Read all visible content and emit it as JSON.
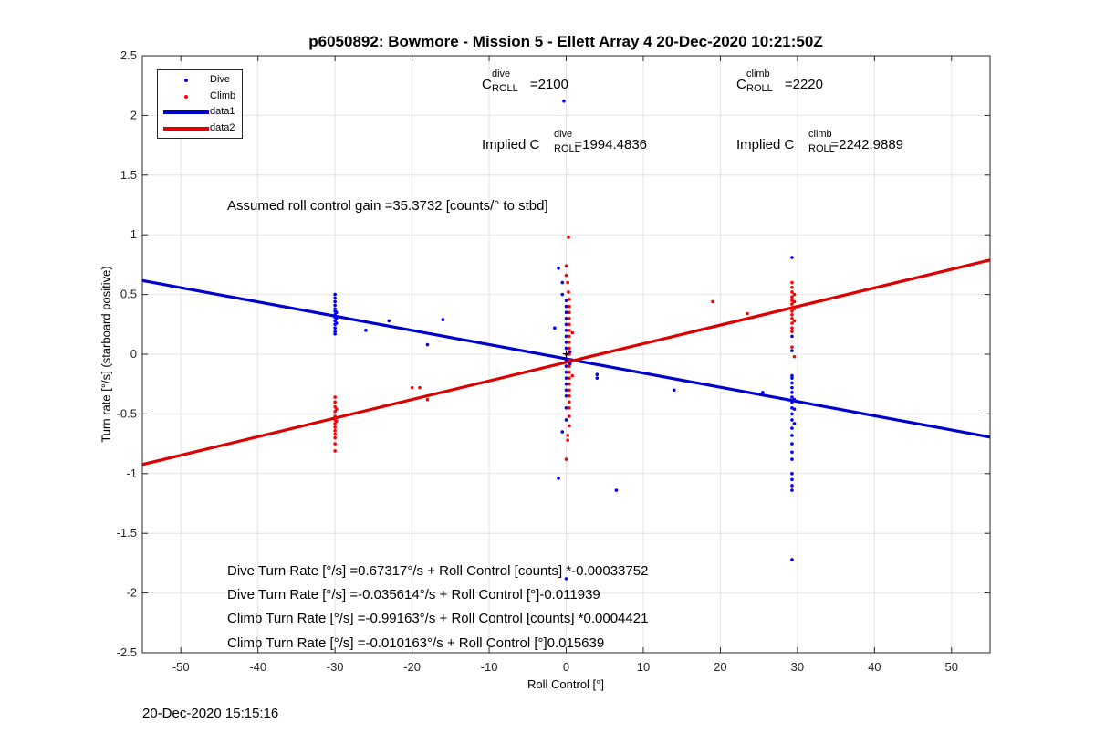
{
  "chart_data": {
    "type": "scatter",
    "title": "p6050892: Bowmore - Mission 5 - Ellett Array 4 20-Dec-2020 10:21:50Z",
    "xlabel": "Roll Control [°]",
    "ylabel": "Turn rate [°/s] (starboard positive)",
    "xlim": [
      -55,
      55
    ],
    "ylim": [
      -2.5,
      2.5
    ],
    "xticks": [
      -50,
      -40,
      -30,
      -20,
      -10,
      0,
      10,
      20,
      30,
      40,
      50
    ],
    "yticks": [
      -2.5,
      -2,
      -1.5,
      -1,
      -0.5,
      0,
      0.5,
      1,
      1.5,
      2,
      2.5
    ],
    "grid": true,
    "legend_position": "top-left",
    "series": [
      {
        "name": "Dive",
        "kind": "points",
        "color": "#0000ff",
        "points": [
          [
            -30,
            0.5
          ],
          [
            -30,
            0.47
          ],
          [
            -30,
            0.44
          ],
          [
            -30,
            0.41
          ],
          [
            -30,
            0.38
          ],
          [
            -30,
            0.36
          ],
          [
            -30,
            0.33
          ],
          [
            -30,
            0.31
          ],
          [
            -30,
            0.28
          ],
          [
            -30,
            0.25
          ],
          [
            -30,
            0.22
          ],
          [
            -30,
            0.19
          ],
          [
            -30,
            0.17
          ],
          [
            -29.8,
            0.35
          ],
          [
            -29.8,
            0.3
          ],
          [
            -29.8,
            0.26
          ],
          [
            -26,
            0.2
          ],
          [
            -23,
            0.28
          ],
          [
            -18,
            0.08
          ],
          [
            -16,
            0.29
          ],
          [
            -1,
            0.72
          ],
          [
            -0.5,
            0.6
          ],
          [
            -0.5,
            0.5
          ],
          [
            0,
            0.45
          ],
          [
            0,
            0.4
          ],
          [
            0,
            0.35
          ],
          [
            0,
            0.3
          ],
          [
            0,
            0.25
          ],
          [
            0,
            0.2
          ],
          [
            0,
            0.15
          ],
          [
            0,
            0.1
          ],
          [
            0,
            0.05
          ],
          [
            0,
            0.0
          ],
          [
            0,
            -0.05
          ],
          [
            0,
            -0.1
          ],
          [
            0,
            -0.15
          ],
          [
            0,
            -0.2
          ],
          [
            0,
            -0.25
          ],
          [
            0,
            -0.3
          ],
          [
            0,
            -0.35
          ],
          [
            0,
            -0.45
          ],
          [
            0,
            -0.55
          ],
          [
            -0.5,
            -0.65
          ],
          [
            -1,
            -1.04
          ],
          [
            -1.5,
            0.22
          ],
          [
            0.5,
            0.02
          ],
          [
            0.5,
            -0.08
          ],
          [
            -0.3,
            2.12
          ],
          [
            0,
            -1.88
          ],
          [
            4,
            -0.17
          ],
          [
            4,
            -0.2
          ],
          [
            14,
            -0.3
          ],
          [
            25.5,
            -0.32
          ],
          [
            6.5,
            -1.14
          ],
          [
            29.3,
            0.81
          ],
          [
            29.3,
            0.15
          ],
          [
            29.3,
            0.03
          ],
          [
            29.3,
            -0.18
          ],
          [
            29.3,
            -0.2
          ],
          [
            29.3,
            -0.24
          ],
          [
            29.3,
            -0.28
          ],
          [
            29.3,
            -0.32
          ],
          [
            29.3,
            -0.36
          ],
          [
            29.3,
            -0.4
          ],
          [
            29.3,
            -0.45
          ],
          [
            29.3,
            -0.5
          ],
          [
            29.3,
            -0.55
          ],
          [
            29.3,
            -0.62
          ],
          [
            29.3,
            -0.68
          ],
          [
            29.3,
            -0.75
          ],
          [
            29.3,
            -0.82
          ],
          [
            29.3,
            -0.88
          ],
          [
            29.3,
            -1.0
          ],
          [
            29.3,
            -1.05
          ],
          [
            29.3,
            -1.1
          ],
          [
            29.3,
            -1.14
          ],
          [
            29.3,
            -1.72
          ],
          [
            29.6,
            -0.38
          ],
          [
            29.6,
            -0.46
          ],
          [
            29.6,
            -0.58
          ]
        ]
      },
      {
        "name": "Climb",
        "kind": "points",
        "color": "#ff0000",
        "points": [
          [
            -30,
            -0.36
          ],
          [
            -30,
            -0.4
          ],
          [
            -30,
            -0.44
          ],
          [
            -30,
            -0.48
          ],
          [
            -30,
            -0.52
          ],
          [
            -30,
            -0.55
          ],
          [
            -30,
            -0.58
          ],
          [
            -30,
            -0.61
          ],
          [
            -30,
            -0.64
          ],
          [
            -30,
            -0.67
          ],
          [
            -30,
            -0.7
          ],
          [
            -30,
            -0.75
          ],
          [
            -30,
            -0.81
          ],
          [
            -29.8,
            -0.46
          ],
          [
            -29.8,
            -0.56
          ],
          [
            -20,
            -0.28
          ],
          [
            -19,
            -0.28
          ],
          [
            -18,
            -0.38
          ],
          [
            0.3,
            0.98
          ],
          [
            0,
            0.74
          ],
          [
            0,
            0.66
          ],
          [
            0.2,
            0.6
          ],
          [
            0.3,
            0.52
          ],
          [
            0.4,
            0.46
          ],
          [
            0.4,
            0.4
          ],
          [
            0.4,
            0.35
          ],
          [
            0.4,
            0.3
          ],
          [
            0.4,
            0.25
          ],
          [
            0.4,
            0.2
          ],
          [
            0.4,
            0.15
          ],
          [
            0.4,
            0.1
          ],
          [
            0.4,
            0.05
          ],
          [
            0.4,
            0.0
          ],
          [
            0.4,
            -0.05
          ],
          [
            0.4,
            -0.1
          ],
          [
            0.4,
            -0.15
          ],
          [
            0.4,
            -0.2
          ],
          [
            0.4,
            -0.25
          ],
          [
            0.4,
            -0.3
          ],
          [
            0.4,
            -0.35
          ],
          [
            0.4,
            -0.4
          ],
          [
            0.4,
            -0.45
          ],
          [
            0.4,
            -0.52
          ],
          [
            0.4,
            -0.6
          ],
          [
            0.2,
            -0.68
          ],
          [
            0.2,
            -0.72
          ],
          [
            0,
            -0.88
          ],
          [
            0.8,
            0.18
          ],
          [
            0.8,
            -0.18
          ],
          [
            19,
            0.44
          ],
          [
            23.5,
            0.34
          ],
          [
            29.3,
            0.6
          ],
          [
            29.3,
            0.56
          ],
          [
            29.3,
            0.52
          ],
          [
            29.3,
            0.48
          ],
          [
            29.3,
            0.45
          ],
          [
            29.3,
            0.42
          ],
          [
            29.3,
            0.39
          ],
          [
            29.3,
            0.36
          ],
          [
            29.3,
            0.33
          ],
          [
            29.3,
            0.3
          ],
          [
            29.3,
            0.26
          ],
          [
            29.3,
            0.22
          ],
          [
            29.3,
            0.19
          ],
          [
            29.3,
            0.06
          ],
          [
            29.6,
            0.5
          ],
          [
            29.6,
            0.44
          ],
          [
            29.6,
            0.38
          ],
          [
            29.6,
            0.28
          ],
          [
            29.6,
            -0.02
          ]
        ]
      },
      {
        "name": "data1",
        "kind": "line",
        "color": "#0000cc",
        "x": [
          -55,
          55
        ],
        "y": [
          0.617,
          -0.694
        ]
      },
      {
        "name": "data2",
        "kind": "line",
        "color": "#dd0000",
        "x": [
          -55,
          55
        ],
        "y": [
          -0.924,
          0.789
        ]
      }
    ]
  },
  "annotations": {
    "c_dive": {
      "c": "C",
      "sup": "dive",
      "sub": "ROLL",
      "value": "=2100"
    },
    "c_climb": {
      "c": "C",
      "sup": "climb",
      "sub": "ROLL",
      "value": "=2220"
    },
    "implied_dive": {
      "prefix": "Implied C",
      "sup": "dive",
      "sub": "ROLL",
      "value": "=1994.4836"
    },
    "implied_climb": {
      "prefix": "Implied C",
      "sup": "climb",
      "sub": "ROLL",
      "value": "=2242.9889"
    },
    "gain": "Assumed roll control gain =35.3732 [counts/° to stbd]",
    "eq1": "Dive Turn Rate [°/s] =0.67317°/s + Roll Control [counts] *-0.00033752",
    "eq2": "Dive Turn Rate [°/s] =-0.035614°/s + Roll Control [°]-0.011939",
    "eq3": "Climb Turn Rate [°/s] =-0.99163°/s + Roll Control [counts] *0.0004421",
    "eq4": "Climb Turn Rate [°/s] =-0.010163°/s + Roll Control [°]0.015639"
  },
  "timestamp": "20-Dec-2020 15:15:16"
}
